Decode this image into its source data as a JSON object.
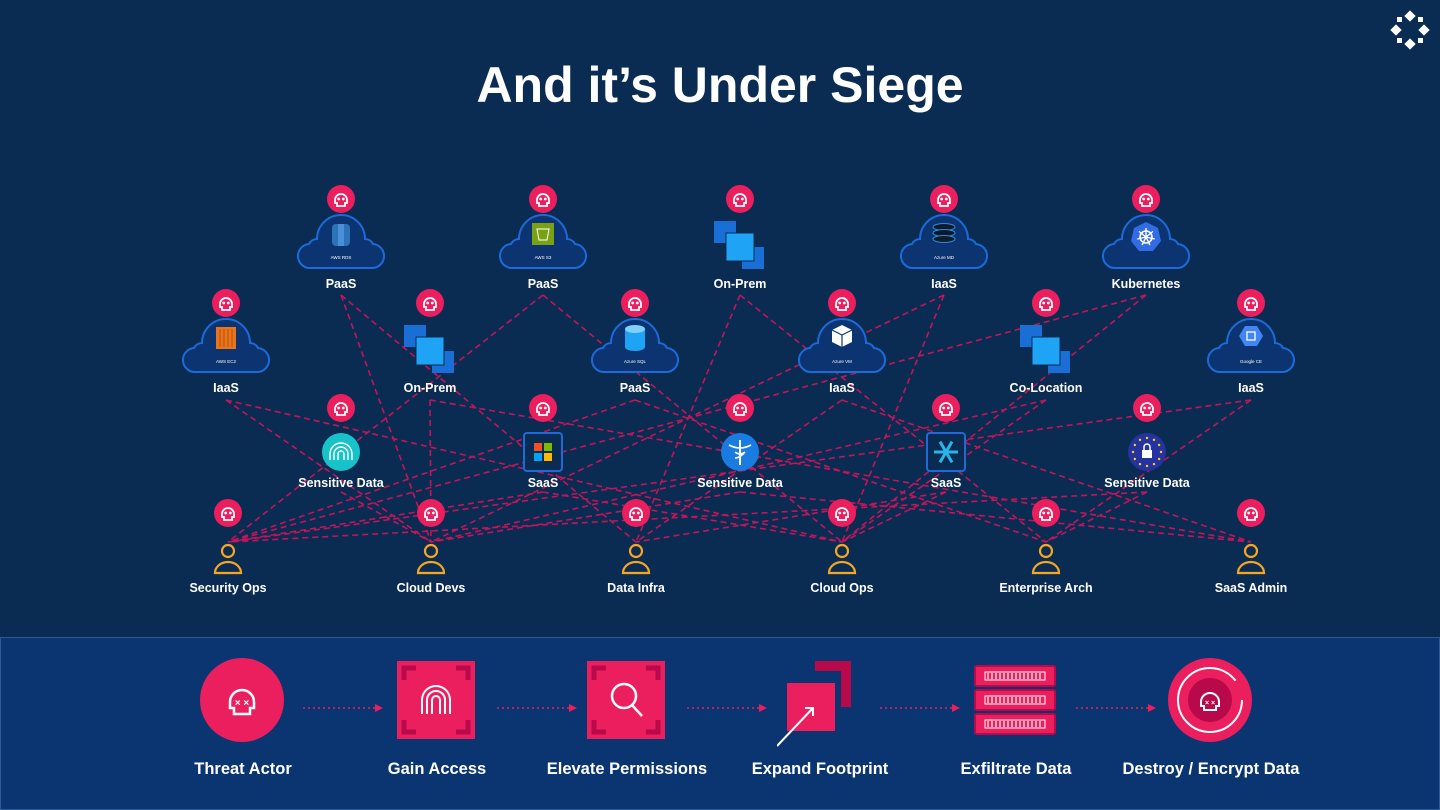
{
  "title": "And it’s Under Siege",
  "logo_icon": "diamond-ring-logo-icon",
  "colors": {
    "background": "#0b2c52",
    "accent": "#ec1f5e",
    "cloud": "#1e6ad8",
    "person": "#f5a623",
    "line": "#c4145a"
  },
  "nodes": [
    {
      "label": "PaaS",
      "sublabel": "AWS RDS",
      "icon": "aws-rds"
    },
    {
      "label": "PaaS",
      "sublabel": "AWS S3",
      "icon": "aws-s3"
    },
    {
      "label": "On-Prem",
      "sublabel": "",
      "icon": "squares"
    },
    {
      "label": "IaaS",
      "sublabel": "Azure MD",
      "icon": "disk"
    },
    {
      "label": "Kubernetes",
      "sublabel": "",
      "icon": "kubernetes"
    },
    {
      "label": "IaaS",
      "sublabel": "AWS EC2",
      "icon": "aws-ec2"
    },
    {
      "label": "On-Prem",
      "sublabel": "",
      "icon": "squares"
    },
    {
      "label": "PaaS",
      "sublabel": "Azure SQL",
      "icon": "azure-sql"
    },
    {
      "label": "IaaS",
      "sublabel": "Azure VM",
      "icon": "azure-vm"
    },
    {
      "label": "Co-Location",
      "sublabel": "",
      "icon": "squares"
    },
    {
      "label": "IaaS",
      "sublabel": "Google CE",
      "icon": "google-ce"
    },
    {
      "label": "Sensitive Data",
      "sublabel": "",
      "icon": "fingerprint"
    },
    {
      "label": "SaaS",
      "sublabel": "",
      "icon": "microsoft"
    },
    {
      "label": "Sensitive Data",
      "sublabel": "",
      "icon": "caduceus"
    },
    {
      "label": "SaaS",
      "sublabel": "",
      "icon": "snowflake"
    },
    {
      "label": "Sensitive Data",
      "sublabel": "",
      "icon": "eu-lock"
    }
  ],
  "personas": [
    "Security Ops",
    "Cloud Devs",
    "Data Infra",
    "Cloud Ops",
    "Enterprise Arch",
    "SaaS Admin"
  ],
  "kill_chain": [
    {
      "label": "Threat Actor",
      "icon": "skull-circle-icon"
    },
    {
      "label": "Gain Access",
      "icon": "fingerprint-icon"
    },
    {
      "label": "Elevate Permissions",
      "icon": "magnifier-icon"
    },
    {
      "label": "Expand Footprint",
      "icon": "expand-arrow-icon"
    },
    {
      "label": "Exfiltrate Data",
      "icon": "server-rack-icon"
    },
    {
      "label": "Destroy / Encrypt Data",
      "icon": "skull-ring-icon"
    }
  ]
}
